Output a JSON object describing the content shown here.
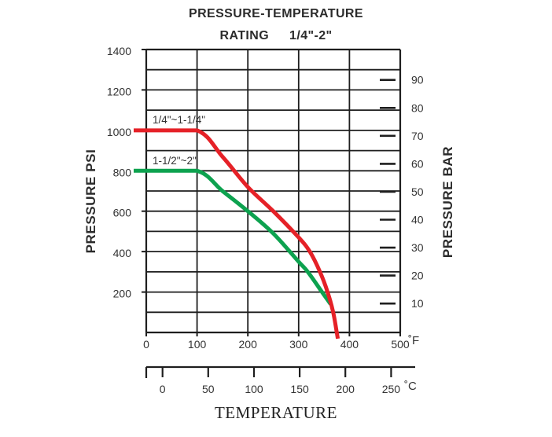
{
  "title": {
    "line1": "PRESSURE-TEMPERATURE",
    "rating_word": "RATING",
    "size_range": "1/4\"-2\""
  },
  "left_axis": {
    "label": "PRESSURE PSI",
    "tick_values": [
      200,
      400,
      600,
      800,
      1000,
      1200,
      1400
    ]
  },
  "right_axis": {
    "label": "PRESSURE BAR",
    "tick_values": [
      10,
      20,
      30,
      40,
      50,
      60,
      70,
      80,
      90
    ]
  },
  "f_axis": {
    "tick_values": [
      0,
      100,
      200,
      300,
      400,
      500
    ],
    "unit": "˚F"
  },
  "c_axis": {
    "tick_values": [
      0,
      50,
      100,
      150,
      200,
      250
    ],
    "unit": "˚C"
  },
  "x_label": "TEMPERATURE",
  "colors": {
    "red_curve": "#e52127",
    "green_curve": "#0da24f",
    "grid": "#1e1e1e",
    "text": "#333333"
  },
  "chart_data": {
    "type": "line",
    "title": "PRESSURE-TEMPERATURE RATING 1/4\"-2\"",
    "xlabel": "TEMPERATURE",
    "ylabel_left": "PRESSURE PSI",
    "ylabel_right": "PRESSURE BAR",
    "x_unit_primary": "°F",
    "x_unit_secondary": "°C",
    "xlim_f": [
      0,
      500
    ],
    "ylim_psi": [
      0,
      1400
    ],
    "grid": true,
    "grid_step_x_f": 100,
    "grid_step_y_psi": 100,
    "legend_position": "inline-labels-above-curves",
    "series": [
      {
        "name": "1/4\"~1-1/4\"",
        "color": "#e52127",
        "points_f_psi": [
          [
            0,
            1000
          ],
          [
            100,
            1000
          ],
          [
            150,
            870
          ],
          [
            200,
            720
          ],
          [
            250,
            600
          ],
          [
            300,
            470
          ],
          [
            322,
            400
          ],
          [
            342,
            300
          ],
          [
            357,
            200
          ],
          [
            368,
            100
          ],
          [
            375,
            0
          ]
        ]
      },
      {
        "name": "1-1/2\"~2\"",
        "color": "#0da24f",
        "points_f_psi": [
          [
            0,
            800
          ],
          [
            100,
            800
          ],
          [
            150,
            700
          ],
          [
            200,
            600
          ],
          [
            250,
            490
          ],
          [
            300,
            350
          ],
          [
            318,
            300
          ],
          [
            346,
            200
          ],
          [
            363,
            140
          ]
        ]
      }
    ]
  }
}
